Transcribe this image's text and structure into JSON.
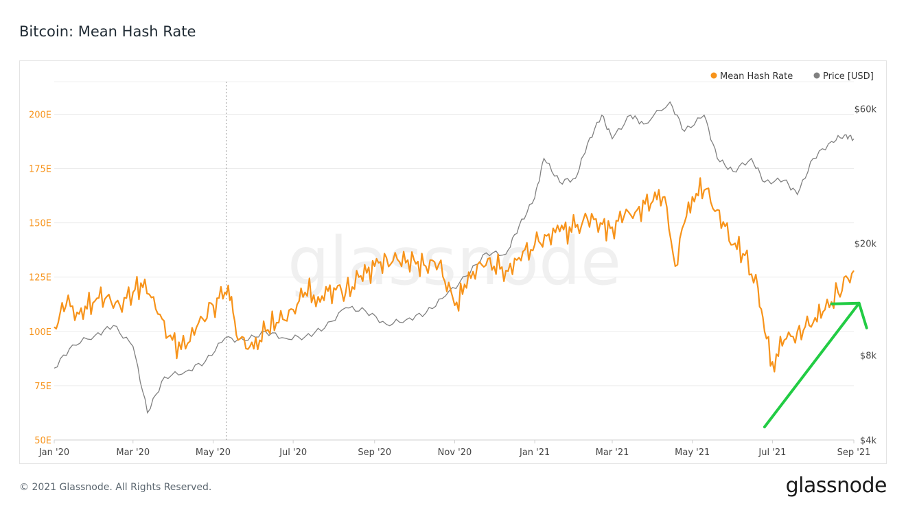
{
  "header": {
    "title": "Bitcoin: Mean Hash Rate"
  },
  "footer": {
    "copyright": "© 2021 Glassnode. All Rights Reserved.",
    "brand": "glassnode"
  },
  "watermark": "glassnode",
  "chart_data": {
    "type": "line",
    "title": "Bitcoin: Mean Hash Rate",
    "legend": {
      "placement": "top-right",
      "entries": [
        "Mean Hash Rate",
        "Price [USD]"
      ]
    },
    "x_ticks": [
      "Jan '20",
      "Mar '20",
      "May '20",
      "Jul '20",
      "Sep '20",
      "Nov '20",
      "Jan '21",
      "Mar '21",
      "May '21",
      "Jul '21",
      "Sep '21"
    ],
    "x_range": [
      "2020-01-01",
      "2021-09-01"
    ],
    "y_left": {
      "ticks": [
        "50E",
        "75E",
        "100E",
        "125E",
        "150E",
        "175E",
        "200E"
      ],
      "range": [
        50,
        215
      ],
      "unit": "E"
    },
    "y_right": {
      "ticks": [
        "$4k",
        "$8k",
        "$20k",
        "$60k"
      ],
      "scale": "log",
      "range": [
        4000,
        75000
      ]
    },
    "grid": true,
    "colors": {
      "hash_rate": "#f7931a",
      "price": "#808080",
      "arrow": "#22cc44"
    },
    "series": [
      {
        "name": "Mean Hash Rate",
        "axis": "left",
        "points": [
          [
            "2020-01-01",
            102
          ],
          [
            "2020-01-10",
            112
          ],
          [
            "2020-01-20",
            108
          ],
          [
            "2020-02-01",
            114
          ],
          [
            "2020-02-10",
            116
          ],
          [
            "2020-02-20",
            112
          ],
          [
            "2020-03-01",
            118
          ],
          [
            "2020-03-10",
            124
          ],
          [
            "2020-03-20",
            108
          ],
          [
            "2020-03-31",
            96
          ],
          [
            "2020-04-10",
            92
          ],
          [
            "2020-04-20",
            104
          ],
          [
            "2020-05-01",
            112
          ],
          [
            "2020-05-10",
            118
          ],
          [
            "2020-05-15",
            116
          ],
          [
            "2020-05-20",
            96
          ],
          [
            "2020-06-01",
            92
          ],
          [
            "2020-06-10",
            100
          ],
          [
            "2020-06-20",
            104
          ],
          [
            "2020-07-01",
            110
          ],
          [
            "2020-07-10",
            118
          ],
          [
            "2020-07-20",
            116
          ],
          [
            "2020-08-01",
            120
          ],
          [
            "2020-08-10",
            118
          ],
          [
            "2020-08-20",
            125
          ],
          [
            "2020-09-01",
            130
          ],
          [
            "2020-09-10",
            134
          ],
          [
            "2020-09-20",
            132
          ],
          [
            "2020-10-01",
            133
          ],
          [
            "2020-10-10",
            130
          ],
          [
            "2020-10-20",
            131
          ],
          [
            "2020-11-01",
            112
          ],
          [
            "2020-11-10",
            120
          ],
          [
            "2020-11-20",
            132
          ],
          [
            "2020-12-01",
            130
          ],
          [
            "2020-12-10",
            128
          ],
          [
            "2020-12-20",
            134
          ],
          [
            "2021-01-01",
            140
          ],
          [
            "2021-01-10",
            144
          ],
          [
            "2021-01-20",
            146
          ],
          [
            "2021-02-01",
            148
          ],
          [
            "2021-02-10",
            152
          ],
          [
            "2021-02-20",
            150
          ],
          [
            "2021-03-01",
            148
          ],
          [
            "2021-03-10",
            153
          ],
          [
            "2021-03-20",
            156
          ],
          [
            "2021-04-01",
            160
          ],
          [
            "2021-04-10",
            162
          ],
          [
            "2021-04-18",
            130
          ],
          [
            "2021-04-25",
            150
          ],
          [
            "2021-05-01",
            162
          ],
          [
            "2021-05-10",
            165
          ],
          [
            "2021-05-20",
            156
          ],
          [
            "2021-06-01",
            140
          ],
          [
            "2021-06-10",
            135
          ],
          [
            "2021-06-20",
            120
          ],
          [
            "2021-06-25",
            100
          ],
          [
            "2021-07-01",
            86
          ],
          [
            "2021-07-10",
            96
          ],
          [
            "2021-07-20",
            100
          ],
          [
            "2021-08-01",
            104
          ],
          [
            "2021-08-10",
            110
          ],
          [
            "2021-08-20",
            118
          ],
          [
            "2021-09-01",
            128
          ]
        ]
      },
      {
        "name": "Price [USD]",
        "axis": "right",
        "points": [
          [
            "2020-01-01",
            7200
          ],
          [
            "2020-01-15",
            8700
          ],
          [
            "2020-02-01",
            9400
          ],
          [
            "2020-02-15",
            10200
          ],
          [
            "2020-03-01",
            8600
          ],
          [
            "2020-03-12",
            5000
          ],
          [
            "2020-03-25",
            6700
          ],
          [
            "2020-04-10",
            7000
          ],
          [
            "2020-04-25",
            7600
          ],
          [
            "2020-05-10",
            9200
          ],
          [
            "2020-05-25",
            9000
          ],
          [
            "2020-06-10",
            9700
          ],
          [
            "2020-06-25",
            9200
          ],
          [
            "2020-07-10",
            9300
          ],
          [
            "2020-07-25",
            10000
          ],
          [
            "2020-08-10",
            11800
          ],
          [
            "2020-08-25",
            11500
          ],
          [
            "2020-09-10",
            10300
          ],
          [
            "2020-09-25",
            10700
          ],
          [
            "2020-10-10",
            11300
          ],
          [
            "2020-10-25",
            13000
          ],
          [
            "2020-11-10",
            15300
          ],
          [
            "2020-11-25",
            18500
          ],
          [
            "2020-12-10",
            18300
          ],
          [
            "2020-12-20",
            23000
          ],
          [
            "2021-01-01",
            29000
          ],
          [
            "2021-01-08",
            40000
          ],
          [
            "2021-01-20",
            33000
          ],
          [
            "2021-02-01",
            34000
          ],
          [
            "2021-02-10",
            45000
          ],
          [
            "2021-02-21",
            57000
          ],
          [
            "2021-03-01",
            47000
          ],
          [
            "2021-03-15",
            57000
          ],
          [
            "2021-03-25",
            53000
          ],
          [
            "2021-04-14",
            63500
          ],
          [
            "2021-04-25",
            50000
          ],
          [
            "2021-05-10",
            57000
          ],
          [
            "2021-05-20",
            40000
          ],
          [
            "2021-06-01",
            36000
          ],
          [
            "2021-06-15",
            40000
          ],
          [
            "2021-06-25",
            33000
          ],
          [
            "2021-07-10",
            33500
          ],
          [
            "2021-07-20",
            29800
          ],
          [
            "2021-08-01",
            40000
          ],
          [
            "2021-08-15",
            46000
          ],
          [
            "2021-08-25",
            48500
          ],
          [
            "2021-09-01",
            47000
          ]
        ]
      }
    ],
    "annotations": [
      {
        "type": "vertical-dotted-line",
        "x": "2020-05-11"
      },
      {
        "type": "arrow",
        "color": "green",
        "from": [
          "2021-06-25",
          56
        ],
        "to": [
          "2021-09-05",
          113
        ]
      }
    ]
  }
}
